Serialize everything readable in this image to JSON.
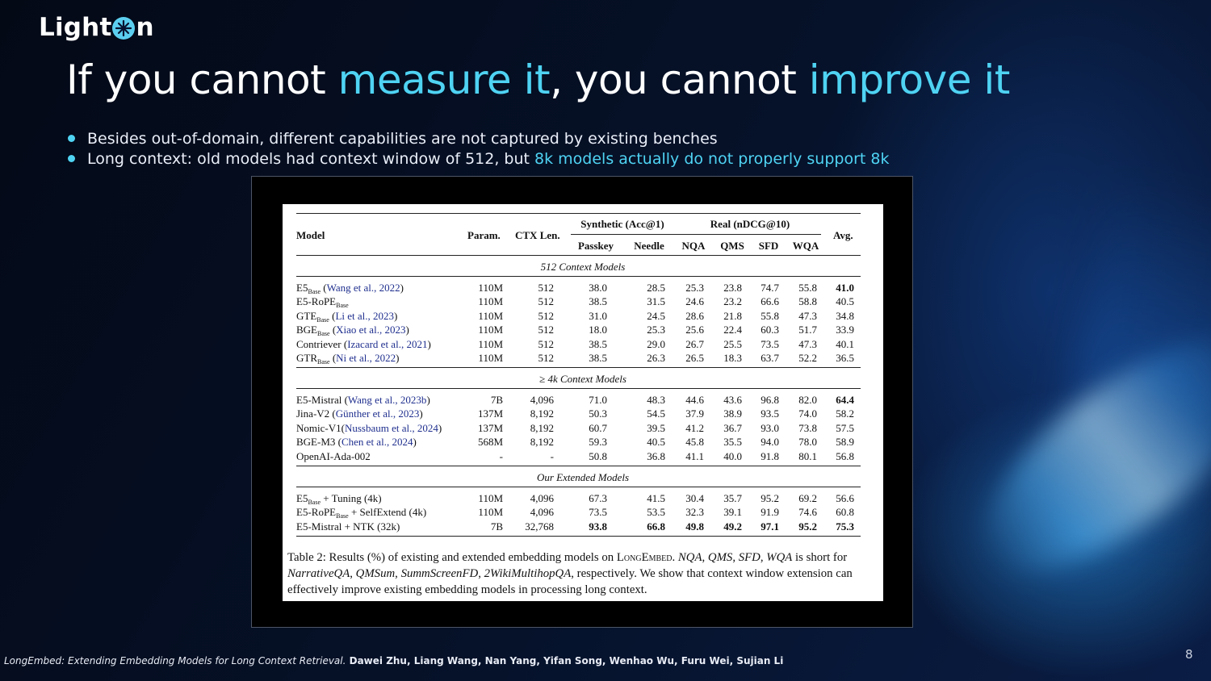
{
  "logo": {
    "left": "Light",
    "right": "n"
  },
  "title": {
    "p1": "If you cannot ",
    "p2": "measure it",
    "p3": ", you cannot ",
    "p4": "improve it"
  },
  "bullets": [
    {
      "text": "Besides out-of-domain, different capabilities are not captured by existing benches"
    },
    {
      "text": "Long context: old models had context window of 512, but ",
      "highlight": "8k models actually do not properly support 8k"
    }
  ],
  "table": {
    "headers": {
      "model": "Model",
      "param": "Param.",
      "ctx": "CTX Len.",
      "synthetic": "Synthetic (Acc@1)",
      "real": "Real (nDCG@10)",
      "avg": "Avg.",
      "passkey": "Passkey",
      "needle": "Needle",
      "nqa": "NQA",
      "qms": "QMS",
      "sfd": "SFD",
      "wqa": "WQA"
    },
    "sections": [
      {
        "label": "512 Context Models",
        "rows": [
          {
            "name": "E5",
            "sub": "Base",
            "tail": " (",
            "cite": "Wang et al., 2022",
            "close": ")",
            "param": "110M",
            "ctx": "512",
            "vals": [
              "38.0",
              "28.5",
              "25.3",
              "23.8",
              "74.7",
              "55.8",
              "41.0"
            ],
            "bold": [
              6
            ]
          },
          {
            "name": "E5-RoPE",
            "sub": "Base",
            "tail": "",
            "cite": "",
            "close": "",
            "param": "110M",
            "ctx": "512",
            "vals": [
              "38.5",
              "31.5",
              "24.6",
              "23.2",
              "66.6",
              "58.8",
              "40.5"
            ],
            "bold": []
          },
          {
            "name": "GTE",
            "sub": "Base",
            "tail": " (",
            "cite": "Li et al., 2023",
            "close": ")",
            "param": "110M",
            "ctx": "512",
            "vals": [
              "31.0",
              "24.5",
              "28.6",
              "21.8",
              "55.8",
              "47.3",
              "34.8"
            ],
            "bold": []
          },
          {
            "name": "BGE",
            "sub": "Base",
            "tail": " (",
            "cite": "Xiao et al., 2023",
            "close": ")",
            "param": "110M",
            "ctx": "512",
            "vals": [
              "18.0",
              "25.3",
              "25.6",
              "22.4",
              "60.3",
              "51.7",
              "33.9"
            ],
            "bold": []
          },
          {
            "name": "Contriever",
            "sub": "",
            "tail": " (",
            "cite": "Izacard et al., 2021",
            "close": ")",
            "param": "110M",
            "ctx": "512",
            "vals": [
              "38.5",
              "29.0",
              "26.7",
              "25.5",
              "73.5",
              "47.3",
              "40.1"
            ],
            "bold": []
          },
          {
            "name": "GTR",
            "sub": "Base",
            "tail": " (",
            "cite": "Ni et al., 2022",
            "close": ")",
            "param": "110M",
            "ctx": "512",
            "vals": [
              "38.5",
              "26.3",
              "26.5",
              "18.3",
              "63.7",
              "52.2",
              "36.5"
            ],
            "bold": []
          }
        ]
      },
      {
        "label": "≥ 4k Context Models",
        "rows": [
          {
            "name": "E5-Mistral",
            "sub": "",
            "tail": " (",
            "cite": "Wang et al., 2023b",
            "close": ")",
            "param": "7B",
            "ctx": "4,096",
            "vals": [
              "71.0",
              "48.3",
              "44.6",
              "43.6",
              "96.8",
              "82.0",
              "64.4"
            ],
            "bold": [
              6
            ]
          },
          {
            "name": "Jina-V2",
            "sub": "",
            "tail": " (",
            "cite": "Günther et al., 2023",
            "close": ")",
            "param": "137M",
            "ctx": "8,192",
            "vals": [
              "50.3",
              "54.5",
              "37.9",
              "38.9",
              "93.5",
              "74.0",
              "58.2"
            ],
            "bold": []
          },
          {
            "name": "Nomic-V1",
            "sub": "",
            "tail": "(",
            "cite": "Nussbaum et al., 2024",
            "close": ")",
            "param": "137M",
            "ctx": "8,192",
            "vals": [
              "60.7",
              "39.5",
              "41.2",
              "36.7",
              "93.0",
              "73.8",
              "57.5"
            ],
            "bold": []
          },
          {
            "name": "BGE-M3",
            "sub": "",
            "tail": " (",
            "cite": "Chen et al., 2024",
            "close": ")",
            "param": "568M",
            "ctx": "8,192",
            "vals": [
              "59.3",
              "40.5",
              "45.8",
              "35.5",
              "94.0",
              "78.0",
              "58.9"
            ],
            "bold": []
          },
          {
            "name": "OpenAI-Ada-002",
            "sub": "",
            "tail": "",
            "cite": "",
            "close": "",
            "param": "-",
            "ctx": "-",
            "vals": [
              "50.8",
              "36.8",
              "41.1",
              "40.0",
              "91.8",
              "80.1",
              "56.8"
            ],
            "bold": []
          }
        ]
      },
      {
        "label": "Our Extended Models",
        "rows": [
          {
            "name": "E5",
            "sub": "Base",
            "tail": " + Tuning (4k)",
            "cite": "",
            "close": "",
            "param": "110M",
            "ctx": "4,096",
            "vals": [
              "67.3",
              "41.5",
              "30.4",
              "35.7",
              "95.2",
              "69.2",
              "56.6"
            ],
            "bold": []
          },
          {
            "name": "E5-RoPE",
            "sub": "Base",
            "tail": " + SelfExtend (4k)",
            "cite": "",
            "close": "",
            "param": "110M",
            "ctx": "4,096",
            "vals": [
              "73.5",
              "53.5",
              "32.3",
              "39.1",
              "91.9",
              "74.6",
              "60.8"
            ],
            "bold": []
          },
          {
            "name": "E5-Mistral + NTK (32k)",
            "sub": "",
            "tail": "",
            "cite": "",
            "close": "",
            "param": "7B",
            "ctx": "32,768",
            "vals": [
              "93.8",
              "66.8",
              "49.8",
              "49.2",
              "97.1",
              "95.2",
              "75.3"
            ],
            "bold": [
              0,
              1,
              2,
              3,
              4,
              5,
              6
            ]
          }
        ]
      }
    ],
    "caption": {
      "t1": "Table 2: Results (%) of existing and extended embedding models on ",
      "t2": "LongEmbed",
      "t3": ". ",
      "t4": "NQA",
      "t5": ", ",
      "t6": "QMS",
      "t7": ", ",
      "t8": "SFD",
      "t9": ", ",
      "t10": "WQA",
      "t11": " is short for ",
      "t12": "NarrativeQA",
      "t13": ", ",
      "t14": "QMSum",
      "t15": ", ",
      "t16": "SummScreenFD",
      "t17": ", ",
      "t18": "2WikiMultihopQA",
      "t19": ", respectively. We show that context window extension can effectively improve existing embedding models in processing long context."
    }
  },
  "footer": {
    "paper": "LongEmbed: Extending Embedding Models for Long Context Retrieval.",
    "authors": " Dawei Zhu, Liang Wang, Nan Yang, Yifan Song, Wenhao Wu, Furu Wei, Sujian Li"
  },
  "page_number": "8",
  "colors": {
    "accent": "#4fd3f3",
    "background": "#050b1c",
    "citation": "#1f2f8e"
  }
}
